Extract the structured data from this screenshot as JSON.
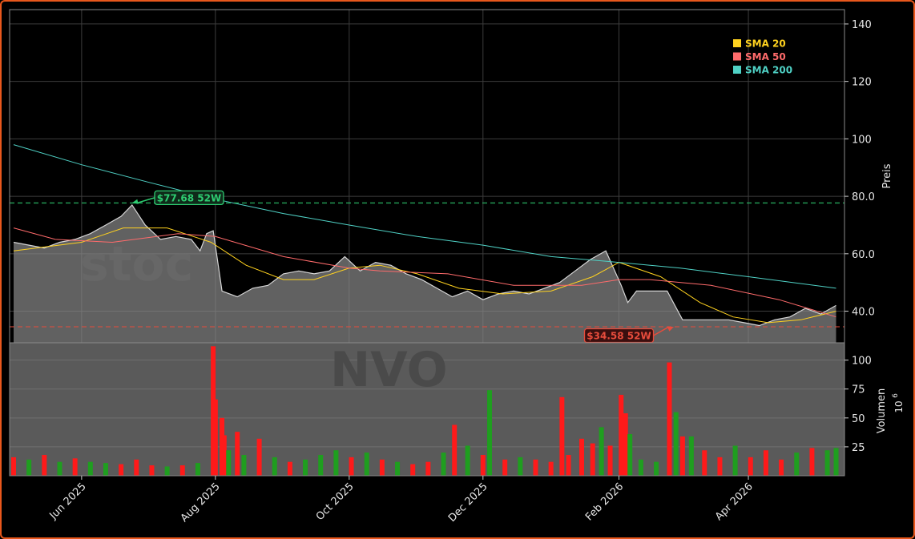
{
  "colors": {
    "frame_border": "#e8571c",
    "price_area": "#8a8a8a",
    "volume_up": "#1f9e1f",
    "volume_down": "#ff1a1a",
    "sma20": "#ffd21f",
    "sma50": "#ff6b6b",
    "sma200": "#4fd1c5",
    "high_marker": "#2ecc71",
    "low_marker": "#e74c3c"
  },
  "chart_data": [
    {
      "type": "line",
      "panel": "price",
      "ticker": "NVO",
      "watermark": "stoc",
      "ylabel": "Preis",
      "ylim": [
        29,
        145
      ],
      "yticks": [
        40,
        60,
        80,
        100,
        120,
        140
      ],
      "ytick_labels": [
        "40.0",
        "60.0",
        "80.0",
        "100",
        "120",
        "140"
      ],
      "xlim": [
        "2025-05-01",
        "2026-05-13"
      ],
      "x_ticks": [
        "2025-06-01",
        "2025-08-01",
        "2025-10-01",
        "2025-12-01",
        "2026-02-01",
        "2026-04-01"
      ],
      "x_tick_labels": [
        "Jun 2025",
        "Aug 2025",
        "Oct 2025",
        "Dec 2025",
        "Feb 2026",
        "Apr 2026"
      ],
      "grid": true,
      "legend_position": "top-right",
      "price_close": [
        {
          "x": "2025-05-01",
          "y": 64
        },
        {
          "x": "2025-05-08",
          "y": 63
        },
        {
          "x": "2025-05-15",
          "y": 62
        },
        {
          "x": "2025-05-22",
          "y": 64
        },
        {
          "x": "2025-05-29",
          "y": 65
        },
        {
          "x": "2025-06-05",
          "y": 67
        },
        {
          "x": "2025-06-12",
          "y": 70
        },
        {
          "x": "2025-06-19",
          "y": 73
        },
        {
          "x": "2025-06-24",
          "y": 77
        },
        {
          "x": "2025-06-30",
          "y": 70
        },
        {
          "x": "2025-07-07",
          "y": 65
        },
        {
          "x": "2025-07-14",
          "y": 66
        },
        {
          "x": "2025-07-21",
          "y": 65
        },
        {
          "x": "2025-07-25",
          "y": 61
        },
        {
          "x": "2025-07-28",
          "y": 67
        },
        {
          "x": "2025-07-31",
          "y": 68
        },
        {
          "x": "2025-08-04",
          "y": 47
        },
        {
          "x": "2025-08-11",
          "y": 45
        },
        {
          "x": "2025-08-18",
          "y": 48
        },
        {
          "x": "2025-08-25",
          "y": 49
        },
        {
          "x": "2025-09-01",
          "y": 53
        },
        {
          "x": "2025-09-08",
          "y": 54
        },
        {
          "x": "2025-09-15",
          "y": 53
        },
        {
          "x": "2025-09-22",
          "y": 54
        },
        {
          "x": "2025-09-29",
          "y": 59
        },
        {
          "x": "2025-10-06",
          "y": 54
        },
        {
          "x": "2025-10-13",
          "y": 57
        },
        {
          "x": "2025-10-20",
          "y": 56
        },
        {
          "x": "2025-10-27",
          "y": 53
        },
        {
          "x": "2025-11-03",
          "y": 51
        },
        {
          "x": "2025-11-10",
          "y": 48
        },
        {
          "x": "2025-11-17",
          "y": 45
        },
        {
          "x": "2025-11-24",
          "y": 47
        },
        {
          "x": "2025-12-01",
          "y": 44
        },
        {
          "x": "2025-12-08",
          "y": 46
        },
        {
          "x": "2025-12-15",
          "y": 47
        },
        {
          "x": "2025-12-22",
          "y": 46
        },
        {
          "x": "2025-12-29",
          "y": 48
        },
        {
          "x": "2026-01-05",
          "y": 50
        },
        {
          "x": "2026-01-12",
          "y": 54
        },
        {
          "x": "2026-01-19",
          "y": 58
        },
        {
          "x": "2026-01-26",
          "y": 61
        },
        {
          "x": "2026-02-02",
          "y": 49
        },
        {
          "x": "2026-02-05",
          "y": 43
        },
        {
          "x": "2026-02-09",
          "y": 47
        },
        {
          "x": "2026-02-16",
          "y": 47
        },
        {
          "x": "2026-02-23",
          "y": 47
        },
        {
          "x": "2026-03-02",
          "y": 37
        },
        {
          "x": "2026-03-09",
          "y": 37
        },
        {
          "x": "2026-03-16",
          "y": 37
        },
        {
          "x": "2026-03-23",
          "y": 37
        },
        {
          "x": "2026-03-30",
          "y": 36
        },
        {
          "x": "2026-04-06",
          "y": 35
        },
        {
          "x": "2026-04-13",
          "y": 37
        },
        {
          "x": "2026-04-20",
          "y": 38
        },
        {
          "x": "2026-04-27",
          "y": 41
        },
        {
          "x": "2026-05-04",
          "y": 39
        },
        {
          "x": "2026-05-11",
          "y": 42
        }
      ],
      "series": [
        {
          "name": "SMA 20",
          "color": "#ffd21f",
          "points": [
            {
              "x": "2025-05-01",
              "y": 61
            },
            {
              "x": "2025-06-01",
              "y": 64
            },
            {
              "x": "2025-06-20",
              "y": 69
            },
            {
              "x": "2025-07-10",
              "y": 69
            },
            {
              "x": "2025-07-30",
              "y": 64
            },
            {
              "x": "2025-08-15",
              "y": 56
            },
            {
              "x": "2025-09-01",
              "y": 51
            },
            {
              "x": "2025-09-15",
              "y": 51
            },
            {
              "x": "2025-10-01",
              "y": 55
            },
            {
              "x": "2025-10-15",
              "y": 56
            },
            {
              "x": "2025-11-01",
              "y": 53
            },
            {
              "x": "2025-11-20",
              "y": 48
            },
            {
              "x": "2025-12-10",
              "y": 46
            },
            {
              "x": "2026-01-01",
              "y": 47
            },
            {
              "x": "2026-01-20",
              "y": 52
            },
            {
              "x": "2026-02-01",
              "y": 57
            },
            {
              "x": "2026-02-20",
              "y": 52
            },
            {
              "x": "2026-03-10",
              "y": 43
            },
            {
              "x": "2026-03-25",
              "y": 38
            },
            {
              "x": "2026-04-10",
              "y": 36
            },
            {
              "x": "2026-04-25",
              "y": 37
            },
            {
              "x": "2026-05-11",
              "y": 40
            }
          ]
        },
        {
          "name": "SMA 50",
          "color": "#ff6b6b",
          "points": [
            {
              "x": "2025-05-01",
              "y": 69
            },
            {
              "x": "2025-05-20",
              "y": 65
            },
            {
              "x": "2025-06-15",
              "y": 64
            },
            {
              "x": "2025-07-15",
              "y": 67
            },
            {
              "x": "2025-08-01",
              "y": 66
            },
            {
              "x": "2025-09-01",
              "y": 59
            },
            {
              "x": "2025-10-01",
              "y": 55
            },
            {
              "x": "2025-10-15",
              "y": 54
            },
            {
              "x": "2025-11-15",
              "y": 53
            },
            {
              "x": "2025-12-15",
              "y": 49
            },
            {
              "x": "2026-01-15",
              "y": 49
            },
            {
              "x": "2026-02-01",
              "y": 51
            },
            {
              "x": "2026-02-15",
              "y": 51
            },
            {
              "x": "2026-03-15",
              "y": 49
            },
            {
              "x": "2026-04-15",
              "y": 44
            },
            {
              "x": "2026-05-11",
              "y": 38
            }
          ]
        },
        {
          "name": "SMA 200",
          "color": "#4fd1c5",
          "points": [
            {
              "x": "2025-05-01",
              "y": 98
            },
            {
              "x": "2025-06-01",
              "y": 91
            },
            {
              "x": "2025-07-01",
              "y": 85
            },
            {
              "x": "2025-08-01",
              "y": 79
            },
            {
              "x": "2025-09-01",
              "y": 74
            },
            {
              "x": "2025-10-01",
              "y": 70
            },
            {
              "x": "2025-11-01",
              "y": 66
            },
            {
              "x": "2025-12-01",
              "y": 63
            },
            {
              "x": "2026-01-01",
              "y": 59
            },
            {
              "x": "2026-02-01",
              "y": 57
            },
            {
              "x": "2026-03-01",
              "y": 55
            },
            {
              "x": "2026-04-01",
              "y": 52
            },
            {
              "x": "2026-05-11",
              "y": 48
            }
          ]
        }
      ],
      "lines": {
        "high_52w": 77.68,
        "low_52w": 34.58
      },
      "annotations": [
        {
          "text": "$77.68 52W",
          "kind": "high",
          "x": "2025-06-24",
          "y": 77.68,
          "label_x": "2025-07-20",
          "label_y": 79.5
        },
        {
          "text": "$34.58 52W",
          "kind": "low",
          "x": "2026-02-26",
          "y": 34.58,
          "label_x": "2026-02-01",
          "label_y": 31.5
        }
      ]
    },
    {
      "type": "bar",
      "panel": "volume",
      "watermark": "NVO",
      "ylabel": "Volumen",
      "unit_label": "10",
      "unit_exp": "6",
      "ylim": [
        0,
        115
      ],
      "yticks": [
        25,
        50,
        75,
        100
      ],
      "ytick_labels": [
        "25",
        "50",
        "75",
        "100"
      ],
      "bars": [
        {
          "x": "2025-05-01",
          "v": 16,
          "up": false
        },
        {
          "x": "2025-05-08",
          "v": 14,
          "up": true
        },
        {
          "x": "2025-05-15",
          "v": 18,
          "up": false
        },
        {
          "x": "2025-05-22",
          "v": 12,
          "up": true
        },
        {
          "x": "2025-05-29",
          "v": 15,
          "up": false
        },
        {
          "x": "2025-06-05",
          "v": 12,
          "up": true
        },
        {
          "x": "2025-06-12",
          "v": 11,
          "up": true
        },
        {
          "x": "2025-06-19",
          "v": 10,
          "up": false
        },
        {
          "x": "2025-06-26",
          "v": 14,
          "up": false
        },
        {
          "x": "2025-07-03",
          "v": 9,
          "up": false
        },
        {
          "x": "2025-07-10",
          "v": 8,
          "up": true
        },
        {
          "x": "2025-07-17",
          "v": 9,
          "up": false
        },
        {
          "x": "2025-07-24",
          "v": 11,
          "up": true
        },
        {
          "x": "2025-07-31",
          "v": 112,
          "up": false
        },
        {
          "x": "2025-08-01",
          "v": 66,
          "up": false
        },
        {
          "x": "2025-08-04",
          "v": 50,
          "up": false
        },
        {
          "x": "2025-08-05",
          "v": 35,
          "up": false
        },
        {
          "x": "2025-08-07",
          "v": 22,
          "up": true
        },
        {
          "x": "2025-08-11",
          "v": 38,
          "up": false
        },
        {
          "x": "2025-08-14",
          "v": 18,
          "up": true
        },
        {
          "x": "2025-08-21",
          "v": 32,
          "up": false
        },
        {
          "x": "2025-08-28",
          "v": 16,
          "up": true
        },
        {
          "x": "2025-09-04",
          "v": 12,
          "up": false
        },
        {
          "x": "2025-09-11",
          "v": 14,
          "up": true
        },
        {
          "x": "2025-09-18",
          "v": 18,
          "up": true
        },
        {
          "x": "2025-09-25",
          "v": 22,
          "up": true
        },
        {
          "x": "2025-10-02",
          "v": 16,
          "up": false
        },
        {
          "x": "2025-10-09",
          "v": 20,
          "up": true
        },
        {
          "x": "2025-10-16",
          "v": 14,
          "up": false
        },
        {
          "x": "2025-10-23",
          "v": 12,
          "up": true
        },
        {
          "x": "2025-10-30",
          "v": 10,
          "up": false
        },
        {
          "x": "2025-11-06",
          "v": 12,
          "up": false
        },
        {
          "x": "2025-11-13",
          "v": 20,
          "up": true
        },
        {
          "x": "2025-11-18",
          "v": 44,
          "up": false
        },
        {
          "x": "2025-11-24",
          "v": 26,
          "up": true
        },
        {
          "x": "2025-12-01",
          "v": 18,
          "up": false
        },
        {
          "x": "2025-12-04",
          "v": 74,
          "up": true
        },
        {
          "x": "2025-12-11",
          "v": 14,
          "up": false
        },
        {
          "x": "2025-12-18",
          "v": 16,
          "up": true
        },
        {
          "x": "2025-12-25",
          "v": 14,
          "up": false
        },
        {
          "x": "2026-01-01",
          "v": 12,
          "up": false
        },
        {
          "x": "2026-01-06",
          "v": 68,
          "up": false
        },
        {
          "x": "2026-01-09",
          "v": 18,
          "up": false
        },
        {
          "x": "2026-01-15",
          "v": 32,
          "up": false
        },
        {
          "x": "2026-01-20",
          "v": 28,
          "up": false
        },
        {
          "x": "2026-01-24",
          "v": 42,
          "up": true
        },
        {
          "x": "2026-01-28",
          "v": 26,
          "up": false
        },
        {
          "x": "2026-02-02",
          "v": 70,
          "up": false
        },
        {
          "x": "2026-02-04",
          "v": 54,
          "up": false
        },
        {
          "x": "2026-02-06",
          "v": 36,
          "up": true
        },
        {
          "x": "2026-02-11",
          "v": 14,
          "up": true
        },
        {
          "x": "2026-02-18",
          "v": 12,
          "up": true
        },
        {
          "x": "2026-02-24",
          "v": 98,
          "up": false
        },
        {
          "x": "2026-02-27",
          "v": 55,
          "up": true
        },
        {
          "x": "2026-03-02",
          "v": 34,
          "up": false
        },
        {
          "x": "2026-03-06",
          "v": 34,
          "up": true
        },
        {
          "x": "2026-03-12",
          "v": 22,
          "up": false
        },
        {
          "x": "2026-03-19",
          "v": 16,
          "up": false
        },
        {
          "x": "2026-03-26",
          "v": 26,
          "up": true
        },
        {
          "x": "2026-04-02",
          "v": 16,
          "up": false
        },
        {
          "x": "2026-04-09",
          "v": 22,
          "up": false
        },
        {
          "x": "2026-04-16",
          "v": 14,
          "up": false
        },
        {
          "x": "2026-04-23",
          "v": 20,
          "up": true
        },
        {
          "x": "2026-04-30",
          "v": 24,
          "up": false
        },
        {
          "x": "2026-05-07",
          "v": 22,
          "up": true
        },
        {
          "x": "2026-05-11",
          "v": 24,
          "up": true
        }
      ]
    }
  ]
}
